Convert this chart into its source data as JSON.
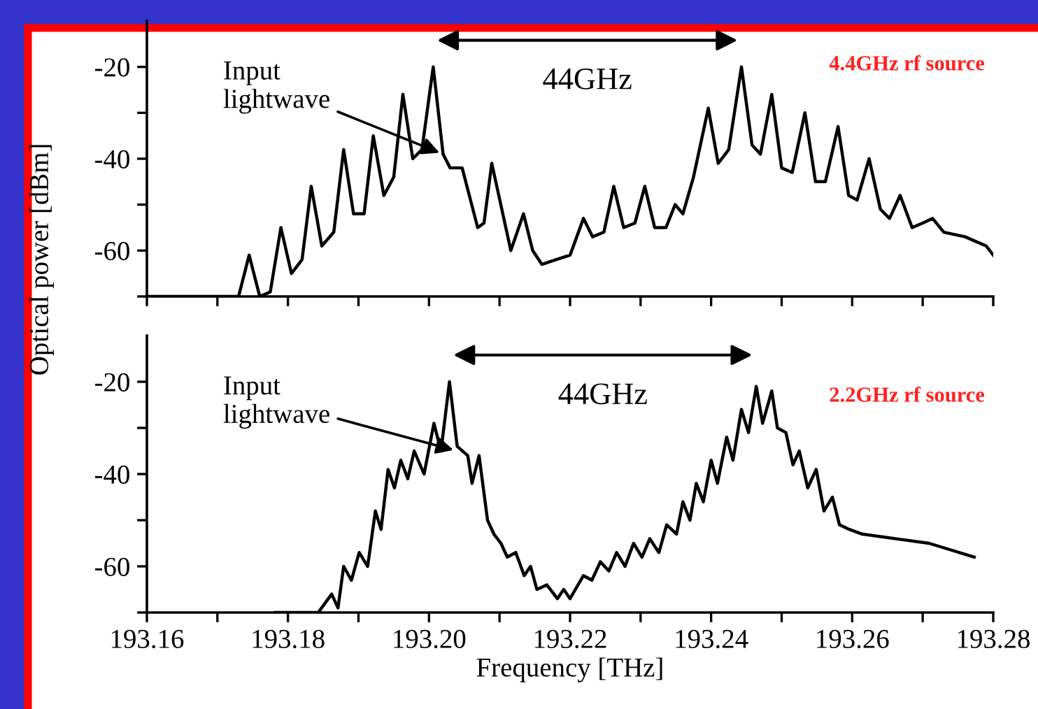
{
  "chart_data": [
    {
      "type": "line",
      "ylabel": "Optical power [dBm]",
      "xlim": [
        193.16,
        193.28
      ],
      "ylim": [
        -70,
        -10
      ],
      "xticks": [
        {
          "value": 193.16,
          "label": null
        },
        {
          "value": 193.17,
          "label": null
        },
        {
          "value": 193.18,
          "label": null
        },
        {
          "value": 193.19,
          "label": null
        },
        {
          "value": 193.2,
          "label": null
        },
        {
          "value": 193.21,
          "label": null
        },
        {
          "value": 193.22,
          "label": null
        },
        {
          "value": 193.23,
          "label": null
        },
        {
          "value": 193.24,
          "label": null
        },
        {
          "value": 193.25,
          "label": null
        },
        {
          "value": 193.26,
          "label": null
        },
        {
          "value": 193.27,
          "label": null
        },
        {
          "value": 193.28,
          "label": null
        }
      ],
      "yticks": [
        {
          "value": -70,
          "label": null
        },
        {
          "value": -60,
          "label": "-60"
        },
        {
          "value": -50,
          "label": null
        },
        {
          "value": -40,
          "label": "-40"
        },
        {
          "value": -30,
          "label": null
        },
        {
          "value": -20,
          "label": "-20"
        }
      ],
      "tick_labels": "y",
      "grid": false,
      "legend": false,
      "annotations": [
        {
          "text": "Input\nlightwave",
          "x": 193.202,
          "y": -39
        },
        "44GHz",
        "4.4GHz rf source"
      ],
      "series": [
        {
          "color": "#000000",
          "x": [
            193.16,
            193.164,
            193.17,
            193.173,
            193.1745,
            193.176,
            193.1775,
            193.179,
            193.1805,
            193.182,
            193.1833,
            193.1848,
            193.1865,
            193.1879,
            193.1893,
            193.1908,
            193.1921,
            193.1936,
            193.195,
            193.1963,
            193.1977,
            193.199,
            193.2006,
            193.202,
            193.203,
            193.2047,
            193.2069,
            193.2078,
            193.2089,
            193.2116,
            193.2134,
            193.2147,
            193.216,
            193.218,
            193.22,
            193.2219,
            193.2232,
            193.2248,
            193.2262,
            193.2276,
            193.2292,
            193.2306,
            193.232,
            193.2336,
            193.2349,
            193.236,
            193.2375,
            193.2396,
            193.241,
            193.2425,
            193.2443,
            193.2458,
            193.247,
            193.2486,
            193.25,
            193.2515,
            193.2533,
            193.2548,
            193.2562,
            193.258,
            193.2595,
            193.2607,
            193.2624,
            193.264,
            193.2653,
            193.2668,
            193.2685,
            193.27,
            193.2714,
            193.273,
            193.276,
            193.279,
            193.28
          ],
          "values": [
            -70,
            -70,
            -70,
            -70,
            -61,
            -70,
            -69,
            -55,
            -65,
            -62,
            -46,
            -59,
            -56,
            -38,
            -52,
            -52,
            -35,
            -48,
            -44,
            -26,
            -40,
            -38,
            -20,
            -39,
            -42,
            -42,
            -55,
            -54,
            -41,
            -60,
            -52,
            -60,
            -63,
            -62,
            -61,
            -53,
            -57,
            -56,
            -46,
            -55,
            -54,
            -46,
            -55,
            -55,
            -50,
            -52,
            -44,
            -29,
            -41,
            -38,
            -20,
            -37,
            -39,
            -26,
            -42,
            -43,
            -30,
            -45,
            -45,
            -33,
            -48,
            -49,
            -40,
            -51,
            -53,
            -48,
            -55,
            -54,
            -53,
            -56,
            -57,
            -59,
            -61
          ]
        }
      ]
    },
    {
      "type": "line",
      "xlabel": "Frequency [THz]",
      "xlim": [
        193.16,
        193.28
      ],
      "ylim": [
        -70,
        -10
      ],
      "xticks": [
        193.16,
        {
          "value": 193.17,
          "label": null
        },
        193.18,
        {
          "value": 193.19,
          "label": null
        },
        {
          "value": 193.2,
          "label": "193.20"
        },
        {
          "value": 193.21,
          "label": null
        },
        193.22,
        {
          "value": 193.23,
          "label": null
        },
        193.24,
        {
          "value": 193.25,
          "label": null
        },
        193.26,
        {
          "value": 193.27,
          "label": null
        },
        193.28
      ],
      "yticks": [
        {
          "value": -70,
          "label": null
        },
        {
          "value": -60,
          "label": "-60"
        },
        {
          "value": -50,
          "label": null
        },
        {
          "value": -40,
          "label": "-40"
        },
        {
          "value": -30,
          "label": null
        },
        {
          "value": -20,
          "label": "-20"
        }
      ],
      "grid": false,
      "legend": false,
      "annotations": [
        {
          "text": "Input\nlightwave",
          "x": 193.204,
          "y": -35
        },
        "44GHz",
        "2.2GHz rf source"
      ],
      "series": [
        {
          "color": "#000000",
          "x": [
            193.1782,
            193.1805,
            193.1843,
            193.1862,
            193.1871,
            193.1879,
            193.189,
            193.1901,
            193.1913,
            193.1924,
            193.1932,
            193.1942,
            193.1951,
            193.196,
            193.197,
            193.1979,
            193.1993,
            193.2007,
            193.2017,
            193.2029,
            193.204,
            193.2055,
            193.2061,
            193.2071,
            193.2083,
            193.2092,
            193.2102,
            193.2111,
            193.2123,
            193.2135,
            193.2144,
            193.2153,
            193.2167,
            193.2182,
            193.2191,
            193.22,
            193.2219,
            193.2231,
            193.2243,
            193.2255,
            193.2266,
            193.2278,
            193.229,
            193.2302,
            193.2313,
            193.2326,
            193.2337,
            193.2351,
            193.236,
            193.237,
            193.2379,
            193.2389,
            193.24,
            193.2409,
            193.2422,
            193.2431,
            193.2443,
            193.2453,
            193.2464,
            193.2473,
            193.2486,
            193.2494,
            193.2506,
            193.2516,
            193.2525,
            193.2537,
            193.2549,
            193.256,
            193.2572,
            193.2582,
            193.2596,
            193.2614,
            193.2661,
            193.2709,
            193.2773
          ],
          "values": [
            -70,
            -70,
            -70,
            -66,
            -69,
            -60,
            -63,
            -57,
            -60,
            -48,
            -52,
            -39,
            -43,
            -37,
            -41,
            -35,
            -40,
            -29,
            -35,
            -20,
            -34,
            -36,
            -42,
            -36,
            -50,
            -53,
            -55,
            -58,
            -57,
            -62,
            -60,
            -65,
            -64,
            -67,
            -65,
            -67,
            -62,
            -63,
            -59,
            -61,
            -57,
            -60,
            -55,
            -58,
            -54,
            -57,
            -51,
            -53,
            -46,
            -50,
            -42,
            -46,
            -37,
            -42,
            -32,
            -37,
            -26,
            -31,
            -21,
            -29,
            -22,
            -30,
            -31,
            -38,
            -35,
            -43,
            -39,
            -48,
            -45,
            -51,
            -52,
            -53,
            -54,
            -55,
            -58
          ]
        }
      ]
    }
  ]
}
